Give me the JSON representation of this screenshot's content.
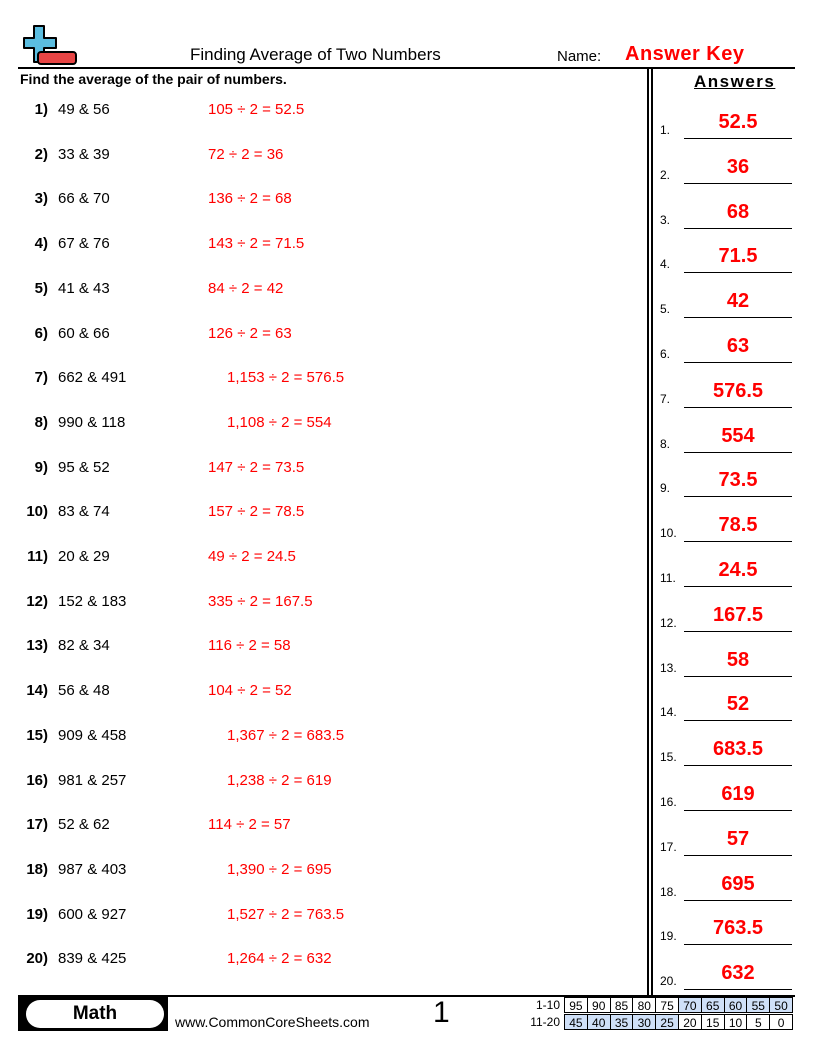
{
  "header": {
    "title": "Finding Average of Two Numbers",
    "name_label": "Name:",
    "name_value": "Answer Key",
    "logo": "plus-minus-logo",
    "accent": "#ff0000"
  },
  "instructions": "Find the average of the pair of numbers.",
  "answers_heading": "Answers",
  "problems": [
    {
      "num": "1)",
      "q": "49 & 56",
      "work": "105 ÷ 2 = 52.5",
      "answer": "52.5"
    },
    {
      "num": "2)",
      "q": "33 & 39",
      "work": "72 ÷ 2 = 36",
      "answer": "36"
    },
    {
      "num": "3)",
      "q": "66 & 70",
      "work": "136 ÷ 2 = 68",
      "answer": "68"
    },
    {
      "num": "4)",
      "q": "67 & 76",
      "work": "143 ÷ 2 = 71.5",
      "answer": "71.5"
    },
    {
      "num": "5)",
      "q": "41 & 43",
      "work": "84 ÷ 2 = 42",
      "answer": "42"
    },
    {
      "num": "6)",
      "q": "60 & 66",
      "work": "126 ÷ 2 = 63",
      "answer": "63"
    },
    {
      "num": "7)",
      "q": "662 & 491",
      "work": "1,153 ÷ 2 = 576.5",
      "answer": "576.5"
    },
    {
      "num": "8)",
      "q": "990 & 118",
      "work": "1,108 ÷ 2 = 554",
      "answer": "554"
    },
    {
      "num": "9)",
      "q": "95 & 52",
      "work": "147 ÷ 2 = 73.5",
      "answer": "73.5"
    },
    {
      "num": "10)",
      "q": "83 & 74",
      "work": "157 ÷ 2 = 78.5",
      "answer": "78.5"
    },
    {
      "num": "11)",
      "q": "20 & 29",
      "work": "49 ÷ 2 = 24.5",
      "answer": "24.5"
    },
    {
      "num": "12)",
      "q": "152 & 183",
      "work": "335 ÷ 2 = 167.5",
      "answer": "167.5"
    },
    {
      "num": "13)",
      "q": "82 & 34",
      "work": "116 ÷ 2 = 58",
      "answer": "58"
    },
    {
      "num": "14)",
      "q": "56 & 48",
      "work": "104 ÷ 2 = 52",
      "answer": "52"
    },
    {
      "num": "15)",
      "q": "909 & 458",
      "work": "1,367 ÷ 2 = 683.5",
      "answer": "683.5"
    },
    {
      "num": "16)",
      "q": "981 & 257",
      "work": "1,238 ÷ 2 = 619",
      "answer": "619"
    },
    {
      "num": "17)",
      "q": "52 & 62",
      "work": "114 ÷ 2 = 57",
      "answer": "57"
    },
    {
      "num": "18)",
      "q": "987 & 403",
      "work": "1,390 ÷ 2 = 695",
      "answer": "695"
    },
    {
      "num": "19)",
      "q": "600 & 927",
      "work": "1,527 ÷ 2 = 763.5",
      "answer": "763.5"
    },
    {
      "num": "20)",
      "q": "839 & 425",
      "work": "1,264 ÷ 2 = 632",
      "answer": "632"
    }
  ],
  "answer_labels": [
    "1.",
    "2.",
    "3.",
    "4.",
    "5.",
    "6.",
    "7.",
    "8.",
    "9.",
    "10.",
    "11.",
    "12.",
    "13.",
    "14.",
    "15.",
    "16.",
    "17.",
    "18.",
    "19.",
    "20."
  ],
  "footer": {
    "subject": "Math",
    "url": "www.CommonCoreSheets.com",
    "page": "1",
    "score_rows": [
      {
        "label": "1-10",
        "cells": [
          "95",
          "90",
          "85",
          "80",
          "75",
          "70",
          "65",
          "60",
          "55",
          "50"
        ],
        "highlight_from": 5
      },
      {
        "label": "11-20",
        "cells": [
          "45",
          "40",
          "35",
          "30",
          "25",
          "20",
          "15",
          "10",
          "5",
          "0"
        ],
        "highlight_to": 4
      }
    ]
  }
}
